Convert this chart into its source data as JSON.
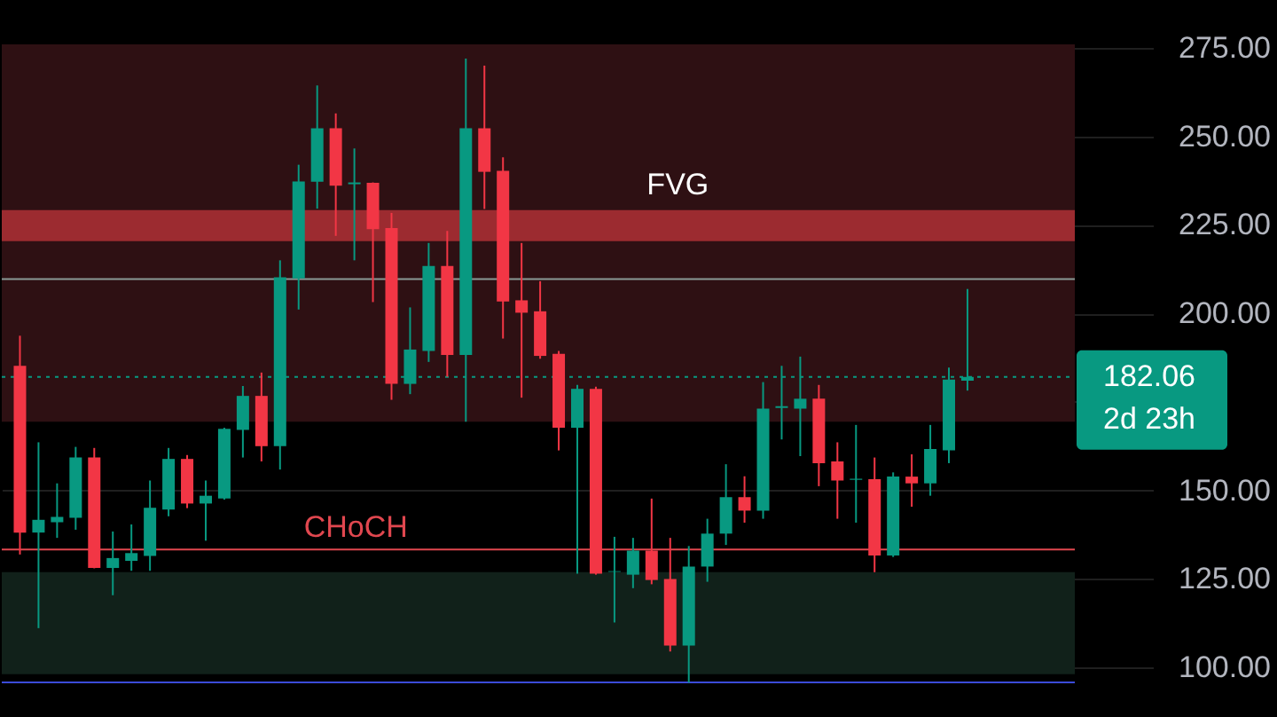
{
  "chart_data": {
    "type": "candlestick",
    "categories": [
      null,
      null,
      null,
      null,
      null,
      null,
      null,
      null,
      null,
      null,
      null,
      null,
      null,
      null,
      null,
      null,
      null,
      null,
      null,
      null,
      null,
      null,
      null,
      null,
      null,
      null,
      null,
      null,
      null,
      null,
      null,
      null,
      null,
      null,
      null,
      null,
      null,
      null,
      null,
      null,
      null,
      null,
      null,
      null,
      null,
      null,
      null,
      null,
      null,
      null,
      null,
      null,
      null,
      null,
      null,
      null,
      null,
      null,
      null,
      null,
      null
    ],
    "ohlc": [
      [
        185.2,
        193.7,
        131.9,
        138.1
      ],
      [
        138.1,
        163.6,
        111.1,
        141.7
      ],
      [
        141,
        152,
        136.6,
        142.5
      ],
      [
        142.3,
        162.3,
        138.9,
        159.3
      ],
      [
        159.3,
        162,
        128,
        128.1
      ],
      [
        128.1,
        138.4,
        120.4,
        130.9
      ],
      [
        130.1,
        140.4,
        127.3,
        132.3
      ],
      [
        131.5,
        152.8,
        127.3,
        145.1
      ],
      [
        144.6,
        162,
        142.7,
        158.9
      ],
      [
        158.9,
        160,
        145,
        146.3
      ],
      [
        146.3,
        152.8,
        135.8,
        148.5
      ],
      [
        147.7,
        167.7,
        147.4,
        167.4
      ],
      [
        167.1,
        179.5,
        159.3,
        176.7
      ],
      [
        176.7,
        183.3,
        158.2,
        162.5
      ],
      [
        162.5,
        215,
        155.9,
        210.2
      ],
      [
        209.9,
        242,
        201.1,
        237.3
      ],
      [
        237.2,
        264.4,
        229.6,
        252.3
      ],
      [
        252.3,
        256.5,
        221.9,
        236.1
      ],
      [
        236.5,
        246.6,
        215,
        237
      ],
      [
        236.9,
        237,
        203.2,
        223.8
      ],
      [
        224.1,
        228.4,
        175.6,
        180.1
      ],
      [
        180.1,
        201.7,
        177.2,
        189.8
      ],
      [
        189.4,
        219.9,
        186.3,
        213.4
      ],
      [
        213.4,
        223.3,
        182.1,
        188.3
      ],
      [
        188.3,
        272,
        169.4,
        252.3
      ],
      [
        252.3,
        270,
        229.5,
        240
      ],
      [
        240.3,
        244.1,
        192.9,
        203.4
      ],
      [
        203.7,
        219.9,
        176.2,
        200.2
      ],
      [
        200.6,
        209.1,
        187.2,
        188
      ],
      [
        188.6,
        189.4,
        161.3,
        167.7
      ],
      [
        167.7,
        179.8,
        126.5,
        178.7
      ],
      [
        178.7,
        179.3,
        126.2,
        126.5
      ],
      [
        127,
        136.9,
        112.7,
        127.2
      ],
      [
        126.2,
        136.6,
        122.4,
        133
      ],
      [
        133,
        147.7,
        123.5,
        124.7
      ],
      [
        125,
        136.6,
        104.5,
        106.2
      ],
      [
        106.2,
        134.3,
        95.7,
        128.5
      ],
      [
        128.5,
        142,
        124.2,
        137.8
      ],
      [
        137.8,
        157.4,
        134.6,
        148.1
      ],
      [
        148.1,
        154,
        140.9,
        144.3
      ],
      [
        144.3,
        180.6,
        142,
        173.1
      ],
      [
        173.3,
        185.2,
        164.4,
        173.8
      ],
      [
        173.1,
        187.8,
        159.7,
        175.9
      ],
      [
        175.9,
        179.8,
        151.2,
        157.7
      ],
      [
        158.2,
        163.6,
        142,
        152.8
      ],
      [
        153,
        168.5,
        140.9,
        153.3
      ],
      [
        153.2,
        159.3,
        126.9,
        131.6
      ],
      [
        131.6,
        155.1,
        131.2,
        153.9
      ],
      [
        153.9,
        160.2,
        145.4,
        152
      ],
      [
        152,
        168.5,
        148.5,
        161.7
      ],
      [
        161.3,
        184.7,
        157.7,
        181.3
      ],
      [
        181,
        206.9,
        178.2,
        182.06
      ],
      null,
      null,
      null,
      null,
      null,
      null,
      null,
      null,
      null
    ],
    "ylim": [
      86,
      276
    ],
    "yticks": [
      {
        "value": 100,
        "label": "100.00"
      },
      {
        "value": 125,
        "label": "125.00"
      },
      {
        "value": 150,
        "label": "150.00"
      },
      {
        "value": 175,
        "label": null
      },
      {
        "value": 200,
        "label": "200.00"
      },
      {
        "value": 225,
        "label": "225.00"
      },
      {
        "value": 250,
        "label": "250.00"
      },
      {
        "value": 275,
        "label": "275.00"
      }
    ],
    "grid": "y",
    "tick_labels": "y",
    "bands": [
      {
        "axis": "y",
        "from": 169.4,
        "to": 276,
        "label": null,
        "color": "#2e1013"
      },
      {
        "axis": "y",
        "from": 98.1,
        "to": 126.9,
        "label": null,
        "color": "#11211a"
      },
      {
        "axis": "y",
        "from": 220.4,
        "to": 229.2,
        "label": "FVG",
        "color": "#9c2b30"
      }
    ],
    "ref_lines": [
      {
        "axis": "y",
        "value": 209.7,
        "label": null,
        "color": "#8a9a95",
        "line_style": "solid"
      },
      {
        "axis": "y",
        "value": 133.3,
        "label": "CHoCH",
        "color": "#e0474f",
        "line_style": "solid"
      },
      {
        "axis": "y",
        "value": 95.8,
        "label": null,
        "color": "#3b4bd8",
        "line_style": "solid"
      },
      {
        "axis": "y",
        "value": 182.06,
        "label": "182.06",
        "color": "#089981",
        "line_style": "dotted"
      }
    ],
    "annotations": [
      "2d 23h"
    ]
  }
}
